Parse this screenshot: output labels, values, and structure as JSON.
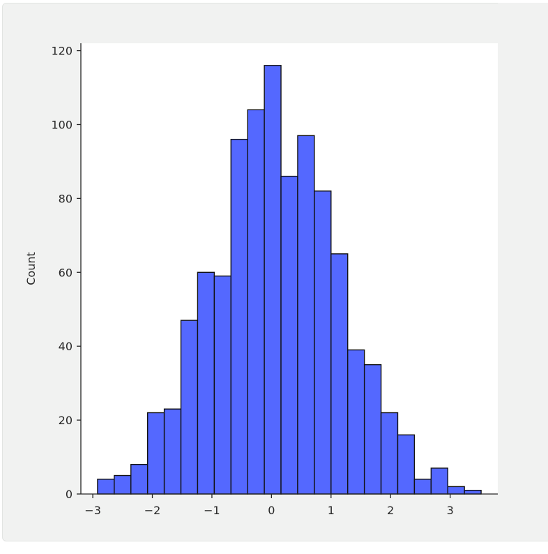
{
  "chart_data": {
    "type": "bar",
    "ylabel": "Count",
    "xlabel": "",
    "bar_color": "#5468ff",
    "edge_color": "#111111",
    "bin_edges": [
      -2.92,
      -2.64,
      -2.36,
      -2.08,
      -1.8,
      -1.52,
      -1.24,
      -0.96,
      -0.68,
      -0.4,
      -0.12,
      0.16,
      0.44,
      0.72,
      1.0,
      1.28,
      1.56,
      1.84,
      2.12,
      2.4,
      2.68,
      2.96,
      3.24,
      3.52
    ],
    "values": [
      4,
      5,
      8,
      22,
      23,
      47,
      60,
      59,
      96,
      104,
      116,
      86,
      97,
      82,
      65,
      39,
      35,
      22,
      16,
      4,
      7,
      2,
      1
    ],
    "xlim": [
      -3.2,
      3.8
    ],
    "ylim": [
      0,
      122
    ],
    "xticks": [
      -3,
      -2,
      -1,
      0,
      1,
      2,
      3
    ],
    "xtick_labels": [
      "−3",
      "−2",
      "−1",
      "0",
      "1",
      "2",
      "3"
    ],
    "yticks": [
      0,
      20,
      40,
      60,
      80,
      100,
      120
    ],
    "ytick_labels": [
      "0",
      "20",
      "40",
      "60",
      "80",
      "100",
      "120"
    ],
    "grid": false
  }
}
